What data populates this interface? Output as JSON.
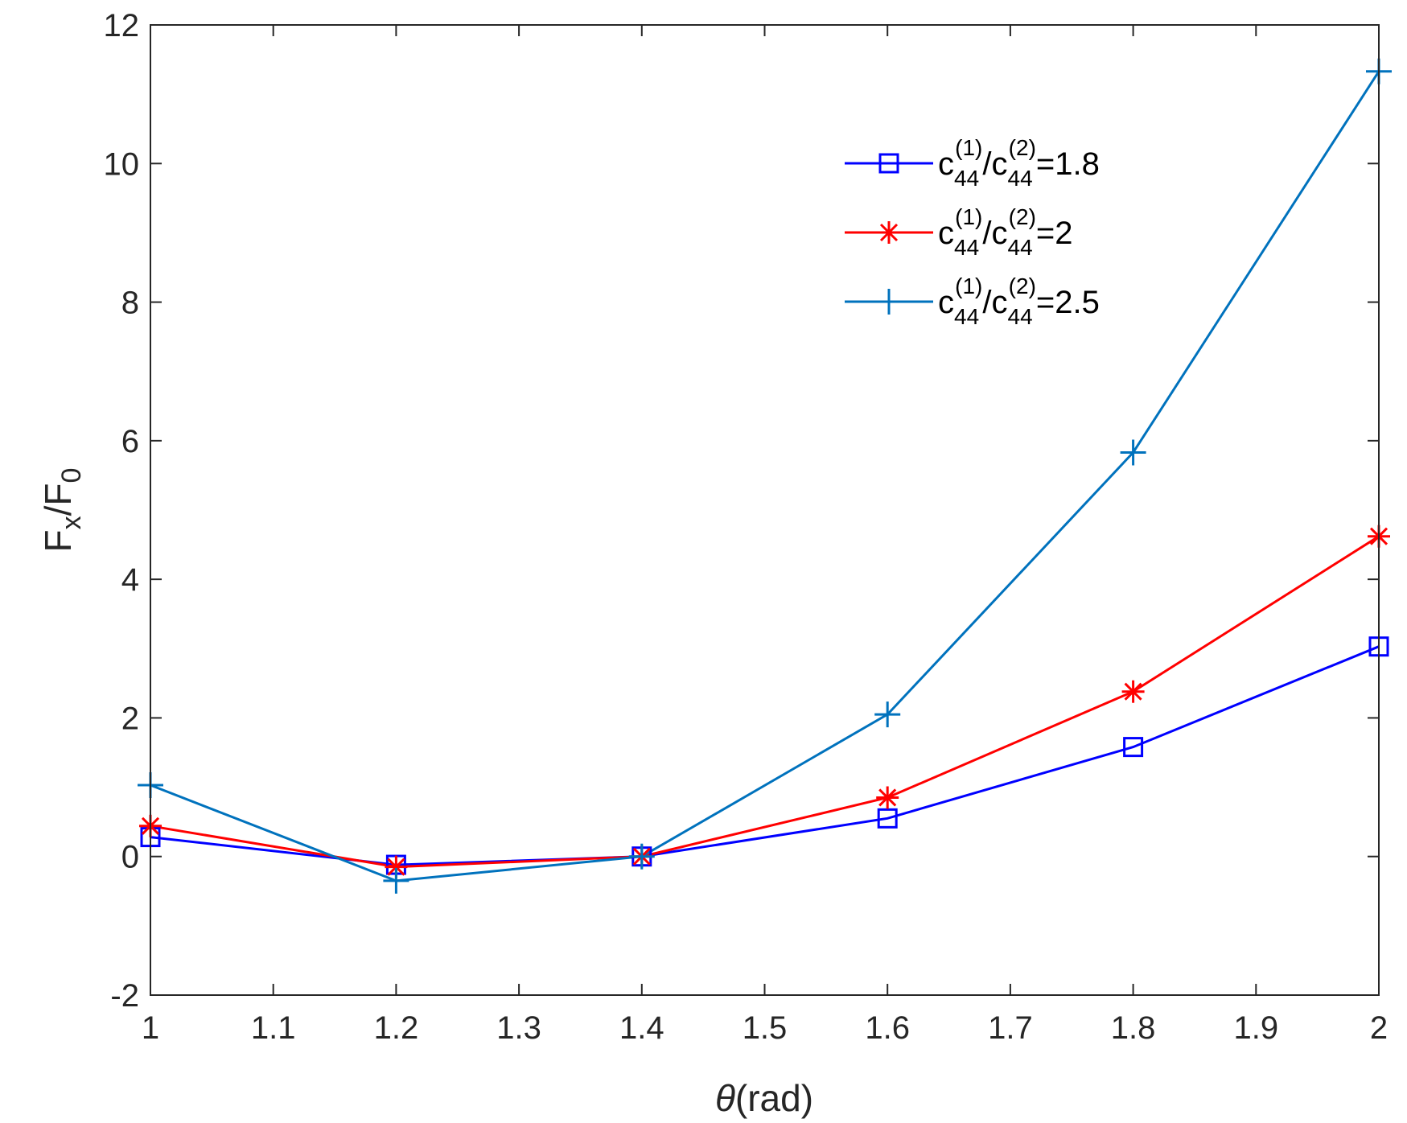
{
  "chart_data": {
    "type": "line",
    "title": "",
    "xlabel": {
      "symbol": "θ",
      "text": "(rad)"
    },
    "ylabel": {
      "main": "F",
      "sub1": "x",
      "sep": "/F",
      "sub2": "0"
    },
    "xlim": [
      1,
      2
    ],
    "ylim": [
      -2,
      12
    ],
    "x_ticks": [
      1,
      1.1,
      1.2,
      1.3,
      1.4,
      1.5,
      1.6,
      1.7,
      1.8,
      1.9,
      2
    ],
    "x_tick_labels": [
      "1",
      "1.1",
      "1.2",
      "1.3",
      "1.4",
      "1.5",
      "1.6",
      "1.7",
      "1.8",
      "1.9",
      "2"
    ],
    "y_ticks": [
      -2,
      0,
      2,
      4,
      6,
      8,
      10,
      12
    ],
    "y_tick_labels": [
      "-2",
      "0",
      "2",
      "4",
      "6",
      "8",
      "10",
      "12"
    ],
    "grid": false,
    "legend_position": "top-right",
    "x": [
      1.0,
      1.2,
      1.4,
      1.6,
      1.8,
      2.0
    ],
    "series": [
      {
        "name": "c44(1)/c44(2)=1.8",
        "legend": {
          "c": "c",
          "sub1": "44",
          "sup1": "(1)",
          "slash": "/c",
          "sub2": "44",
          "sup2": "(2)",
          "value": "=1.8"
        },
        "color": "#0000ff",
        "marker": "square",
        "values": [
          0.28,
          -0.12,
          0.0,
          0.55,
          1.58,
          3.03
        ]
      },
      {
        "name": "c44(1)/c44(2)=2",
        "legend": {
          "c": "c",
          "sub1": "44",
          "sup1": "(1)",
          "slash": "/c",
          "sub2": "44",
          "sup2": "(2)",
          "value": "=2"
        },
        "color": "#ff0000",
        "marker": "asterisk",
        "values": [
          0.44,
          -0.15,
          0.0,
          0.85,
          2.38,
          4.62
        ]
      },
      {
        "name": "c44(1)/c44(2)=2.5",
        "legend": {
          "c": "c",
          "sub1": "44",
          "sup1": "(1)",
          "slash": "/c",
          "sub2": "44",
          "sup2": "(2)",
          "value": "=2.5"
        },
        "color": "#0072bd",
        "marker": "plus",
        "values": [
          1.03,
          -0.35,
          0.0,
          2.05,
          5.83,
          11.33
        ]
      }
    ]
  }
}
